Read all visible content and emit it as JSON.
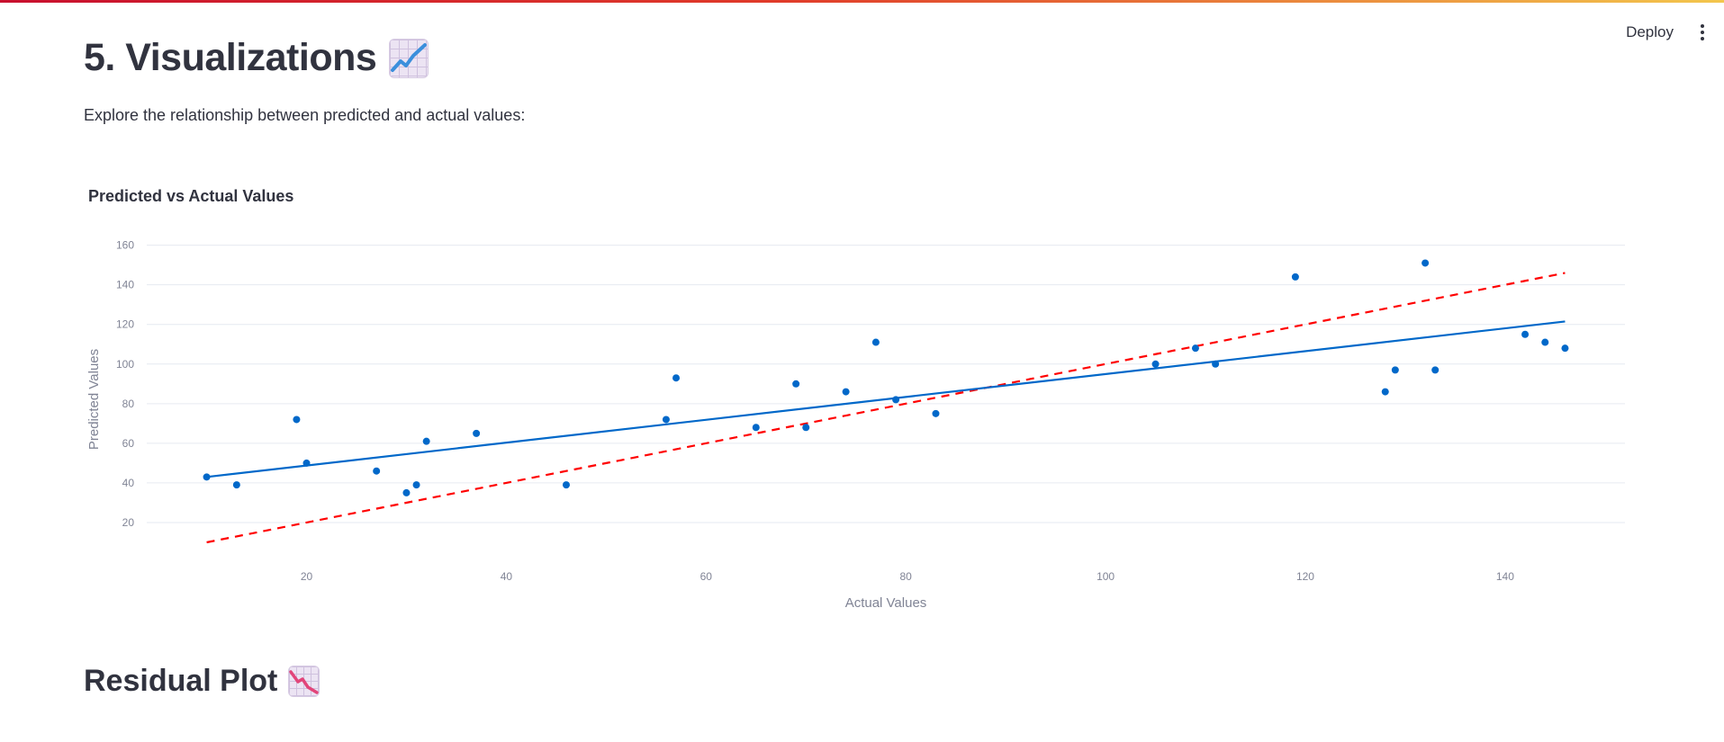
{
  "header": {
    "deploy_label": "Deploy"
  },
  "section": {
    "title": "5. Visualizations",
    "title_icon": "chart-increasing-emoji",
    "intro": "Explore the relationship between predicted and actual values:"
  },
  "chart_data": {
    "type": "scatter",
    "title": "Predicted vs Actual Values",
    "xlabel": "Actual Values",
    "ylabel": "Predicted Values",
    "xlim": [
      4,
      152
    ],
    "ylim": [
      10,
      168
    ],
    "x_ticks": [
      20,
      40,
      60,
      80,
      100,
      120,
      140
    ],
    "y_ticks": [
      20,
      40,
      60,
      80,
      100,
      120,
      140,
      160
    ],
    "grid": "horizontal",
    "legend": "none",
    "points": [
      {
        "x": 10,
        "y": 43
      },
      {
        "x": 13,
        "y": 39
      },
      {
        "x": 19,
        "y": 72
      },
      {
        "x": 20,
        "y": 50
      },
      {
        "x": 27,
        "y": 46
      },
      {
        "x": 30,
        "y": 35
      },
      {
        "x": 31,
        "y": 39
      },
      {
        "x": 32,
        "y": 61
      },
      {
        "x": 37,
        "y": 65
      },
      {
        "x": 46,
        "y": 39
      },
      {
        "x": 56,
        "y": 72
      },
      {
        "x": 57,
        "y": 93
      },
      {
        "x": 65,
        "y": 68
      },
      {
        "x": 69,
        "y": 90
      },
      {
        "x": 70,
        "y": 68
      },
      {
        "x": 74,
        "y": 86
      },
      {
        "x": 77,
        "y": 111
      },
      {
        "x": 79,
        "y": 82
      },
      {
        "x": 83,
        "y": 75
      },
      {
        "x": 105,
        "y": 100
      },
      {
        "x": 109,
        "y": 108
      },
      {
        "x": 111,
        "y": 100
      },
      {
        "x": 119,
        "y": 144
      },
      {
        "x": 128,
        "y": 86
      },
      {
        "x": 129,
        "y": 97
      },
      {
        "x": 132,
        "y": 151
      },
      {
        "x": 133,
        "y": 97
      },
      {
        "x": 142,
        "y": 115
      },
      {
        "x": 144,
        "y": 111
      },
      {
        "x": 146,
        "y": 108
      }
    ],
    "fit_line": {
      "x": [
        10,
        146
      ],
      "y": [
        43,
        121.5
      ],
      "color": "#0068c9"
    },
    "ideal_line": {
      "x": [
        10,
        146
      ],
      "y": [
        10,
        146
      ],
      "color": "#ff0000",
      "style": "dashed"
    },
    "point_color": "#0068c9"
  },
  "next_section": {
    "title": "Residual Plot",
    "title_icon": "chart-decreasing-emoji"
  }
}
